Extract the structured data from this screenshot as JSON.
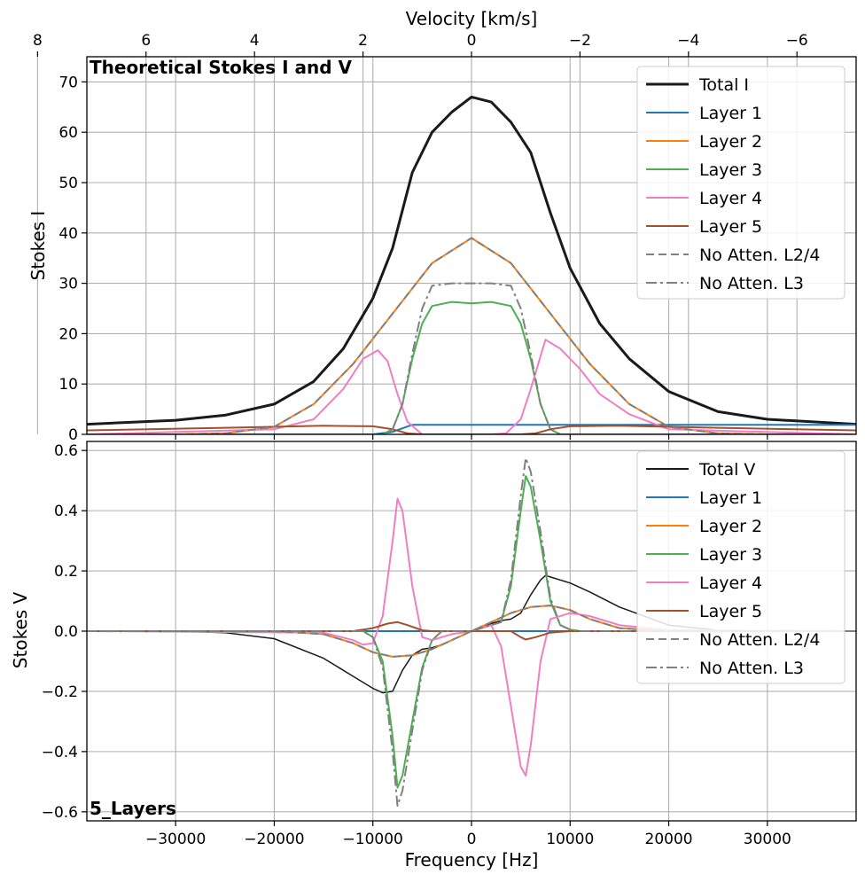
{
  "figure": {
    "panel_title": "Theoretical Stokes I and V",
    "model_label": "5_Layers",
    "top_axis_label": "Velocity [km/s]",
    "bottom_axis_label": "Frequency [Hz]"
  },
  "chart_data": [
    {
      "type": "line",
      "panel": "top",
      "title": "Theoretical Stokes I and V",
      "xlabel": "Velocity [km/s]",
      "ylabel": "Stokes I",
      "xlim": [
        -39000,
        39000
      ],
      "ylim": [
        0,
        75
      ],
      "x_ticks": [
        -30000,
        -20000,
        -10000,
        0,
        10000,
        20000,
        30000
      ],
      "x_tick_labels": [
        "−30000",
        "−20000",
        "−10000",
        "0",
        "10000",
        "20000",
        "30000"
      ],
      "y_ticks": [
        0,
        10,
        20,
        30,
        40,
        50,
        60,
        70
      ],
      "y_tick_labels": [
        "0",
        "10",
        "20",
        "30",
        "40",
        "50",
        "60",
        "70"
      ],
      "secondary_x_ticks": [
        8,
        6,
        4,
        2,
        0,
        -2,
        -4,
        -6,
        -8
      ],
      "secondary_x_tick_labels": [
        "8",
        "6",
        "4",
        "2",
        "0",
        "−2",
        "−4",
        "−6",
        "−8"
      ],
      "secondary_x_conversion": "velocity_km_s = -frequency_hz / 5500",
      "grid": true,
      "legend_position": "upper right",
      "series": [
        {
          "name": "Total I",
          "color": "#1a1a1a",
          "style": "solid",
          "width": 3,
          "x": [
            -39000,
            -30000,
            -25000,
            -20000,
            -16000,
            -13000,
            -10000,
            -8000,
            -6000,
            -4000,
            -2000,
            0,
            2000,
            4000,
            6000,
            8000,
            10000,
            13000,
            16000,
            20000,
            25000,
            30000,
            39000
          ],
          "y": [
            2,
            2.8,
            3.8,
            6,
            10.5,
            17,
            27,
            37,
            52,
            60,
            64,
            67,
            66,
            62,
            56,
            44,
            33,
            22,
            15,
            8.5,
            4.5,
            3,
            2
          ]
        },
        {
          "name": "Layer 1",
          "color": "#1f77b4",
          "style": "solid",
          "width": 2,
          "x": [
            -39000,
            -10000,
            -8000,
            -6000,
            0,
            6000,
            8000,
            10000,
            39000
          ],
          "y": [
            0,
            0,
            0.5,
            1.9,
            1.9,
            1.9,
            1.9,
            1.9,
            1.9
          ]
        },
        {
          "name": "Layer 2",
          "color": "#ff7f0e",
          "style": "solid",
          "width": 2,
          "x": [
            -39000,
            -30000,
            -25000,
            -20000,
            -16000,
            -12000,
            -8000,
            -4000,
            0,
            4000,
            8000,
            12000,
            16000,
            20000,
            25000,
            30000,
            39000
          ],
          "y": [
            0,
            0,
            0.2,
            1.5,
            6,
            14,
            24,
            34,
            39,
            34,
            24,
            14,
            6,
            1.5,
            0.2,
            0,
            0
          ]
        },
        {
          "name": "Layer 3",
          "color": "#4caf50",
          "style": "solid",
          "width": 2,
          "x": [
            -39000,
            -9000,
            -8000,
            -7000,
            -6000,
            -5000,
            -4000,
            -2000,
            0,
            2000,
            4000,
            5000,
            6000,
            7000,
            8000,
            9000,
            39000
          ],
          "y": [
            0,
            0,
            1,
            6,
            15,
            22,
            25.5,
            26.3,
            26,
            26.3,
            25.5,
            22,
            15,
            6,
            1,
            0,
            0
          ]
        },
        {
          "name": "Layer 4",
          "color": "#f07ec5",
          "style": "solid",
          "width": 2,
          "x": [
            -39000,
            -20000,
            -16000,
            -13000,
            -11000,
            -9500,
            -8500,
            -7500,
            -6500,
            -5000,
            -2000,
            0,
            2000,
            3500,
            5000,
            6000,
            7500,
            9000,
            11000,
            13000,
            16000,
            20000,
            39000
          ],
          "y": [
            0,
            1,
            3,
            9,
            15,
            16.7,
            14.5,
            8,
            2.5,
            0,
            0,
            0,
            0,
            0.2,
            3,
            9,
            18.8,
            17,
            13,
            8,
            4,
            1,
            0
          ]
        },
        {
          "name": "Layer 5",
          "color": "#a0522d",
          "style": "solid",
          "width": 2,
          "x": [
            -39000,
            -25000,
            -15000,
            -10000,
            -8000,
            -6500,
            -5000,
            0,
            5000,
            6500,
            8000,
            10000,
            15000,
            25000,
            39000
          ],
          "y": [
            0.8,
            1.3,
            1.7,
            1.6,
            1,
            0.2,
            0,
            0,
            0,
            0.2,
            1,
            1.6,
            1.7,
            1.3,
            0.8
          ]
        },
        {
          "name": "No Atten. L2/4",
          "color": "#808080",
          "style": "dashed",
          "width": 2,
          "x": [
            -39000,
            -30000,
            -25000,
            -20000,
            -16000,
            -12000,
            -8000,
            -4000,
            0,
            4000,
            8000,
            12000,
            16000,
            20000,
            25000,
            30000,
            39000
          ],
          "y": [
            0,
            0,
            0.2,
            1.5,
            6,
            14,
            24,
            34,
            39,
            34,
            24,
            14,
            6,
            1.5,
            0.2,
            0,
            0
          ]
        },
        {
          "name": "No Atten. L3",
          "color": "#808080",
          "style": "dashdot",
          "width": 2,
          "x": [
            -39000,
            -9000,
            -8000,
            -7000,
            -6000,
            -5000,
            -4000,
            -2000,
            0,
            2000,
            4000,
            5000,
            6000,
            7000,
            8000,
            9000,
            39000
          ],
          "y": [
            0,
            0,
            1,
            6,
            16,
            25,
            29.5,
            30,
            30,
            30,
            29.5,
            25,
            16,
            6,
            1,
            0,
            0
          ]
        }
      ]
    },
    {
      "type": "line",
      "panel": "bottom",
      "title": "",
      "xlabel": "Frequency [Hz]",
      "ylabel": "Stokes V",
      "xlim": [
        -39000,
        39000
      ],
      "ylim": [
        -0.63,
        0.63
      ],
      "x_ticks": [
        -30000,
        -20000,
        -10000,
        0,
        10000,
        20000,
        30000
      ],
      "x_tick_labels": [
        "−30000",
        "−20000",
        "−10000",
        "0",
        "10000",
        "20000",
        "30000"
      ],
      "y_ticks": [
        -0.6,
        -0.4,
        -0.2,
        0.0,
        0.2,
        0.4,
        0.6
      ],
      "y_tick_labels": [
        "−0.6",
        "−0.4",
        "−0.2",
        "0.0",
        "0.2",
        "0.4",
        "0.6"
      ],
      "grid": true,
      "legend_position": "upper right",
      "series": [
        {
          "name": "Total V",
          "color": "#1a1a1a",
          "style": "solid",
          "width": 1.5,
          "x": [
            -39000,
            -30000,
            -25000,
            -20000,
            -15000,
            -12000,
            -10000,
            -9000,
            -8000,
            -7000,
            -6000,
            -5000,
            -4000,
            -3000,
            -2000,
            0,
            2000,
            3000,
            4000,
            5000,
            6000,
            7000,
            7500,
            8000,
            9000,
            10000,
            12000,
            15000,
            20000,
            25000,
            30000,
            39000
          ],
          "y": [
            0,
            0,
            -0.005,
            -0.025,
            -0.09,
            -0.15,
            -0.19,
            -0.205,
            -0.2,
            -0.13,
            -0.08,
            -0.06,
            -0.055,
            -0.045,
            -0.03,
            0,
            0.025,
            0.035,
            0.04,
            0.06,
            0.12,
            0.17,
            0.185,
            0.18,
            0.17,
            0.16,
            0.13,
            0.08,
            0.02,
            0.003,
            0,
            0
          ]
        },
        {
          "name": "Layer 1",
          "color": "#1f77b4",
          "style": "solid",
          "width": 2,
          "x": [
            -39000,
            39000
          ],
          "y": [
            0,
            0
          ]
        },
        {
          "name": "Layer 2",
          "color": "#ff7f0e",
          "style": "solid",
          "width": 2,
          "x": [
            -39000,
            -20000,
            -15000,
            -12000,
            -10000,
            -8000,
            -6000,
            -4000,
            -2000,
            0,
            2000,
            4000,
            6000,
            8000,
            10000,
            12000,
            15000,
            20000,
            39000
          ],
          "y": [
            0,
            0,
            -0.01,
            -0.04,
            -0.07,
            -0.085,
            -0.08,
            -0.06,
            -0.03,
            0,
            0.03,
            0.06,
            0.08,
            0.085,
            0.07,
            0.04,
            0.01,
            0,
            0
          ]
        },
        {
          "name": "Layer 3",
          "color": "#4caf50",
          "style": "solid",
          "width": 2,
          "x": [
            -39000,
            -11000,
            -10000,
            -9000,
            -8000,
            -7500,
            -7000,
            -6000,
            -5000,
            -4000,
            -3000,
            0,
            3000,
            4000,
            5000,
            5500,
            6000,
            7000,
            8000,
            9000,
            10000,
            11000,
            39000
          ],
          "y": [
            0,
            0,
            -0.02,
            -0.1,
            -0.35,
            -0.52,
            -0.48,
            -0.3,
            -0.12,
            -0.03,
            0,
            0,
            0.03,
            0.15,
            0.4,
            0.515,
            0.48,
            0.3,
            0.1,
            0.02,
            0.005,
            0,
            0
          ]
        },
        {
          "name": "Layer 4",
          "color": "#f07ec5",
          "style": "solid",
          "width": 2,
          "x": [
            -39000,
            -15000,
            -12000,
            -11000,
            -10000,
            -9000,
            -8000,
            -7500,
            -7000,
            -6000,
            -5000,
            -4000,
            -2000,
            0,
            2000,
            3000,
            4000,
            5000,
            5500,
            6000,
            7000,
            8000,
            10000,
            12000,
            15000,
            20000,
            39000
          ],
          "y": [
            0,
            -0.005,
            -0.03,
            -0.045,
            -0.04,
            0.05,
            0.3,
            0.44,
            0.4,
            0.15,
            -0.02,
            -0.03,
            -0.01,
            0,
            0.02,
            -0.05,
            -0.25,
            -0.45,
            -0.48,
            -0.38,
            -0.1,
            0.04,
            0.06,
            0.05,
            0.02,
            0.003,
            0
          ]
        },
        {
          "name": "Layer 5",
          "color": "#a0522d",
          "style": "solid",
          "width": 2,
          "x": [
            -39000,
            -12000,
            -10000,
            -8500,
            -7500,
            -6500,
            -5000,
            -4000,
            0,
            4000,
            5000,
            5500,
            6500,
            8000,
            10000,
            12000,
            39000
          ],
          "y": [
            0,
            0,
            0.01,
            0.025,
            0.03,
            0.02,
            0.003,
            0,
            0,
            0,
            -0.02,
            -0.028,
            -0.02,
            -0.005,
            0,
            0,
            0
          ]
        },
        {
          "name": "No Atten. L2/4",
          "color": "#808080",
          "style": "dashed",
          "width": 2,
          "x": [
            -39000,
            -20000,
            -15000,
            -12000,
            -10000,
            -8000,
            -6000,
            -4000,
            -2000,
            0,
            2000,
            4000,
            6000,
            8000,
            10000,
            12000,
            15000,
            20000,
            39000
          ],
          "y": [
            0,
            0,
            -0.01,
            -0.04,
            -0.07,
            -0.085,
            -0.08,
            -0.06,
            -0.03,
            0,
            0.03,
            0.06,
            0.08,
            0.085,
            0.07,
            0.04,
            0.01,
            0,
            0
          ]
        },
        {
          "name": "No Atten. L3",
          "color": "#808080",
          "style": "dashdot",
          "width": 2,
          "x": [
            -39000,
            -11000,
            -10000,
            -9000,
            -8000,
            -7500,
            -7000,
            -6000,
            -5000,
            -4000,
            -3000,
            0,
            3000,
            4000,
            5000,
            5500,
            6000,
            7000,
            8000,
            9000,
            10000,
            11000,
            39000
          ],
          "y": [
            0,
            0,
            -0.02,
            -0.12,
            -0.4,
            -0.58,
            -0.53,
            -0.33,
            -0.13,
            -0.03,
            0,
            0,
            0.03,
            0.17,
            0.45,
            0.575,
            0.53,
            0.33,
            0.11,
            0.02,
            0.005,
            0,
            0
          ]
        }
      ]
    }
  ]
}
